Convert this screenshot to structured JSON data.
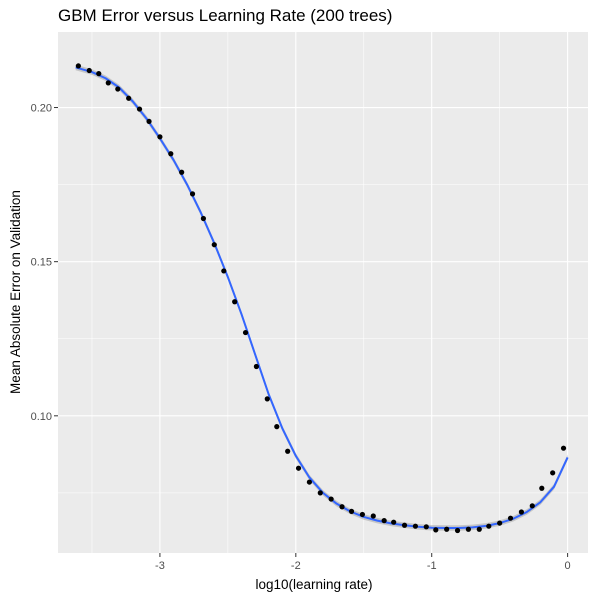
{
  "chart_data": {
    "type": "scatter",
    "title": "GBM Error versus Learning Rate (200 trees)",
    "xlabel": "log10(learning rate)",
    "ylabel": "Mean Absolute Error on Validation",
    "xlim": [
      -3.75,
      0.15
    ],
    "ylim": [
      0.0555,
      0.2245
    ],
    "x_ticks": [
      -3,
      -2,
      -1,
      0
    ],
    "x_tick_labels": [
      "-3",
      "-2",
      "-1",
      "0"
    ],
    "y_ticks": [
      0.1,
      0.15,
      0.2
    ],
    "y_tick_labels": [
      "0.10",
      "0.15",
      "0.20"
    ],
    "grid": true,
    "points": [
      [
        -3.6,
        0.2135
      ],
      [
        -3.52,
        0.212
      ],
      [
        -3.45,
        0.211
      ],
      [
        -3.38,
        0.208
      ],
      [
        -3.31,
        0.206
      ],
      [
        -3.23,
        0.203
      ],
      [
        -3.15,
        0.1995
      ],
      [
        -3.08,
        0.1955
      ],
      [
        -3.0,
        0.1905
      ],
      [
        -2.92,
        0.185
      ],
      [
        -2.84,
        0.179
      ],
      [
        -2.76,
        0.172
      ],
      [
        -2.68,
        0.164
      ],
      [
        -2.6,
        0.1555
      ],
      [
        -2.53,
        0.147
      ],
      [
        -2.45,
        0.137
      ],
      [
        -2.37,
        0.127
      ],
      [
        -2.29,
        0.116
      ],
      [
        -2.21,
        0.1055
      ],
      [
        -2.14,
        0.0965
      ],
      [
        -2.06,
        0.0885
      ],
      [
        -1.98,
        0.083
      ],
      [
        -1.9,
        0.0785
      ],
      [
        -1.82,
        0.075
      ],
      [
        -1.74,
        0.073
      ],
      [
        -1.66,
        0.0705
      ],
      [
        -1.59,
        0.069
      ],
      [
        -1.51,
        0.068
      ],
      [
        -1.43,
        0.0675
      ],
      [
        -1.35,
        0.066
      ],
      [
        -1.28,
        0.0655
      ],
      [
        -1.2,
        0.0645
      ],
      [
        -1.12,
        0.0642
      ],
      [
        -1.04,
        0.064
      ],
      [
        -0.97,
        0.063
      ],
      [
        -0.89,
        0.0632
      ],
      [
        -0.81,
        0.0628
      ],
      [
        -0.73,
        0.0632
      ],
      [
        -0.65,
        0.0632
      ],
      [
        -0.58,
        0.0642
      ],
      [
        -0.5,
        0.0652
      ],
      [
        -0.42,
        0.0668
      ],
      [
        -0.34,
        0.0688
      ],
      [
        -0.26,
        0.0708
      ],
      [
        -0.19,
        0.0765
      ],
      [
        -0.11,
        0.0815
      ],
      [
        -0.03,
        0.0895
      ]
    ],
    "smooth_line": [
      [
        -3.62,
        0.213
      ],
      [
        -3.5,
        0.2115
      ],
      [
        -3.4,
        0.2095
      ],
      [
        -3.3,
        0.2065
      ],
      [
        -3.2,
        0.202
      ],
      [
        -3.1,
        0.1965
      ],
      [
        -3.0,
        0.19
      ],
      [
        -2.9,
        0.183
      ],
      [
        -2.8,
        0.175
      ],
      [
        -2.7,
        0.166
      ],
      [
        -2.6,
        0.156
      ],
      [
        -2.5,
        0.145
      ],
      [
        -2.4,
        0.133
      ],
      [
        -2.3,
        0.12
      ],
      [
        -2.2,
        0.107
      ],
      [
        -2.1,
        0.096
      ],
      [
        -2.0,
        0.087
      ],
      [
        -1.9,
        0.08
      ],
      [
        -1.8,
        0.075
      ],
      [
        -1.7,
        0.0715
      ],
      [
        -1.6,
        0.069
      ],
      [
        -1.5,
        0.0672
      ],
      [
        -1.4,
        0.066
      ],
      [
        -1.3,
        0.0651
      ],
      [
        -1.2,
        0.0645
      ],
      [
        -1.1,
        0.064
      ],
      [
        -1.0,
        0.0637
      ],
      [
        -0.9,
        0.0636
      ],
      [
        -0.8,
        0.0636
      ],
      [
        -0.7,
        0.0638
      ],
      [
        -0.6,
        0.0643
      ],
      [
        -0.5,
        0.0652
      ],
      [
        -0.4,
        0.0666
      ],
      [
        -0.3,
        0.0688
      ],
      [
        -0.2,
        0.072
      ],
      [
        -0.1,
        0.077
      ],
      [
        0.0,
        0.0865
      ]
    ],
    "colors": {
      "panel_bg": "#ebebeb",
      "grid_major": "#ffffff",
      "point": "#000000",
      "smooth_line": "#3366ff",
      "ribbon": "#999999"
    }
  }
}
